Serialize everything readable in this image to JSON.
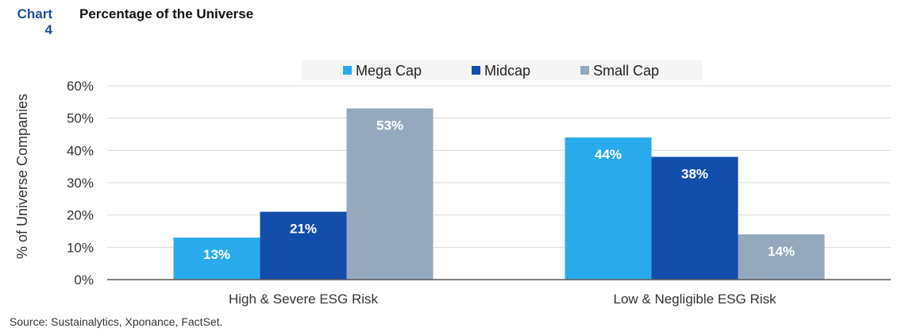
{
  "header": {
    "chart_label": "Chart 4",
    "title": "Percentage of the Universe"
  },
  "source": "Source: Sustainalytics, Xponance, FactSet.",
  "colors": {
    "mega_cap": "#29aaec",
    "midcap": "#124dac",
    "small_cap": "#94a9bd",
    "grid": "#d9d9d9",
    "axis": "#595959"
  },
  "chart_data": {
    "type": "bar",
    "title": "Percentage of the Universe",
    "xlabel": "",
    "ylabel": "% of Universe Companies",
    "categories": [
      "High & Severe ESG Risk",
      "Low & Negligible ESG Risk"
    ],
    "series": [
      {
        "name": "Mega Cap",
        "values": [
          13,
          44
        ],
        "labels": [
          "13%",
          "44%"
        ],
        "color": "#29aaec"
      },
      {
        "name": "Midcap",
        "values": [
          21,
          38
        ],
        "labels": [
          "21%",
          "38%"
        ],
        "color": "#124dac"
      },
      {
        "name": "Small Cap",
        "values": [
          53,
          14
        ],
        "labels": [
          "53%",
          "14%"
        ],
        "color": "#94a9bd"
      }
    ],
    "ylim": [
      0,
      60
    ],
    "yticks": [
      "0%",
      "10%",
      "20%",
      "30%",
      "40%",
      "50%",
      "60%"
    ],
    "grid": true,
    "legend_position": "top"
  }
}
